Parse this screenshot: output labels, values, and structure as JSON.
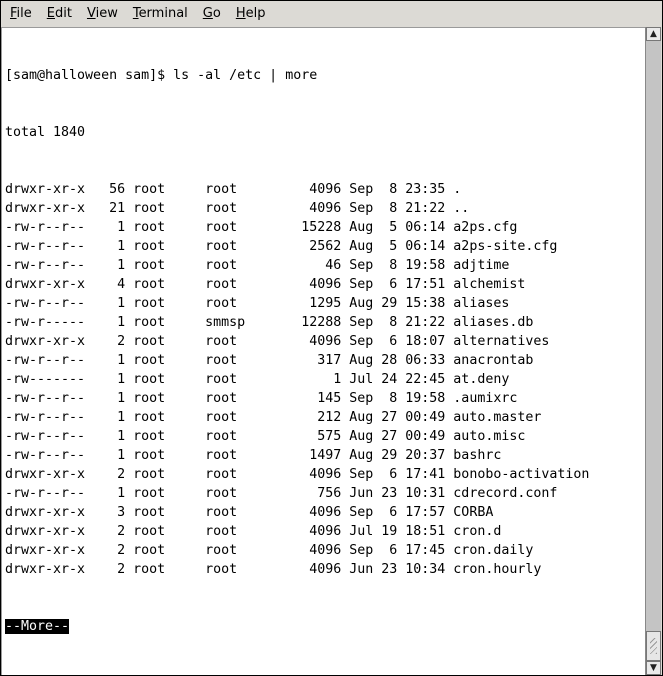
{
  "menu": [
    {
      "label": "File",
      "mnemonic": "F"
    },
    {
      "label": "Edit",
      "mnemonic": "E"
    },
    {
      "label": "View",
      "mnemonic": "V"
    },
    {
      "label": "Terminal",
      "mnemonic": "T"
    },
    {
      "label": "Go",
      "mnemonic": "G"
    },
    {
      "label": "Help",
      "mnemonic": "H"
    }
  ],
  "terminal": {
    "prompt": "[sam@halloween sam]$ ls -al /etc | more",
    "total": "total 1840",
    "listing": [
      [
        "drwxr-xr-x",
        "56",
        "root",
        "root",
        "4096",
        "Sep",
        "8",
        "23:35",
        "."
      ],
      [
        "drwxr-xr-x",
        "21",
        "root",
        "root",
        "4096",
        "Sep",
        "8",
        "21:22",
        ".."
      ],
      [
        "-rw-r--r--",
        "1",
        "root",
        "root",
        "15228",
        "Aug",
        "5",
        "06:14",
        "a2ps.cfg"
      ],
      [
        "-rw-r--r--",
        "1",
        "root",
        "root",
        "2562",
        "Aug",
        "5",
        "06:14",
        "a2ps-site.cfg"
      ],
      [
        "-rw-r--r--",
        "1",
        "root",
        "root",
        "46",
        "Sep",
        "8",
        "19:58",
        "adjtime"
      ],
      [
        "drwxr-xr-x",
        "4",
        "root",
        "root",
        "4096",
        "Sep",
        "6",
        "17:51",
        "alchemist"
      ],
      [
        "-rw-r--r--",
        "1",
        "root",
        "root",
        "1295",
        "Aug",
        "29",
        "15:38",
        "aliases"
      ],
      [
        "-rw-r-----",
        "1",
        "root",
        "smmsp",
        "12288",
        "Sep",
        "8",
        "21:22",
        "aliases.db"
      ],
      [
        "drwxr-xr-x",
        "2",
        "root",
        "root",
        "4096",
        "Sep",
        "6",
        "18:07",
        "alternatives"
      ],
      [
        "-rw-r--r--",
        "1",
        "root",
        "root",
        "317",
        "Aug",
        "28",
        "06:33",
        "anacrontab"
      ],
      [
        "-rw-------",
        "1",
        "root",
        "root",
        "1",
        "Jul",
        "24",
        "22:45",
        "at.deny"
      ],
      [
        "-rw-r--r--",
        "1",
        "root",
        "root",
        "145",
        "Sep",
        "8",
        "19:58",
        ".aumixrc"
      ],
      [
        "-rw-r--r--",
        "1",
        "root",
        "root",
        "212",
        "Aug",
        "27",
        "00:49",
        "auto.master"
      ],
      [
        "-rw-r--r--",
        "1",
        "root",
        "root",
        "575",
        "Aug",
        "27",
        "00:49",
        "auto.misc"
      ],
      [
        "-rw-r--r--",
        "1",
        "root",
        "root",
        "1497",
        "Aug",
        "29",
        "20:37",
        "bashrc"
      ],
      [
        "drwxr-xr-x",
        "2",
        "root",
        "root",
        "4096",
        "Sep",
        "6",
        "17:41",
        "bonobo-activation"
      ],
      [
        "-rw-r--r--",
        "1",
        "root",
        "root",
        "756",
        "Jun",
        "23",
        "10:31",
        "cdrecord.conf"
      ],
      [
        "drwxr-xr-x",
        "3",
        "root",
        "root",
        "4096",
        "Sep",
        "6",
        "17:57",
        "CORBA"
      ],
      [
        "drwxr-xr-x",
        "2",
        "root",
        "root",
        "4096",
        "Jul",
        "19",
        "18:51",
        "cron.d"
      ],
      [
        "drwxr-xr-x",
        "2",
        "root",
        "root",
        "4096",
        "Sep",
        "6",
        "17:45",
        "cron.daily"
      ],
      [
        "drwxr-xr-x",
        "2",
        "root",
        "root",
        "4096",
        "Jun",
        "23",
        "10:34",
        "cron.hourly"
      ]
    ],
    "pager_prompt": "--More--"
  },
  "scrollbar": {
    "up_icon": "arrow-up-icon",
    "down_icon": "arrow-down-icon",
    "position": "bottom"
  }
}
